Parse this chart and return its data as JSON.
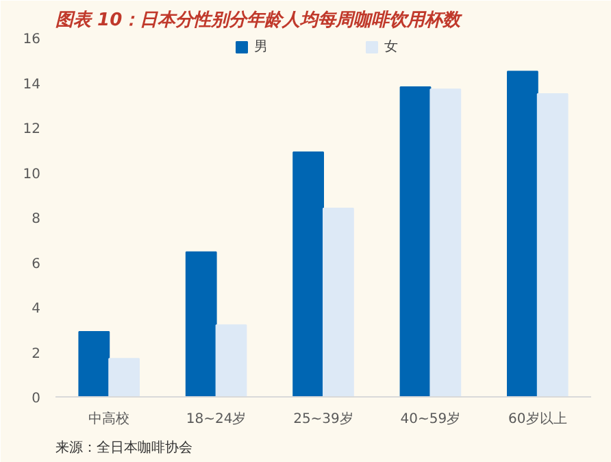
{
  "chart_data": {
    "type": "bar",
    "title": "图表 10：日本分性别分年龄人均每周咖啡饮用杯数",
    "categories": [
      "中高校",
      "18~24岁",
      "25~39岁",
      "40~59岁",
      "60岁以上"
    ],
    "series": [
      {
        "name": "男",
        "color": "#0066b3",
        "values": [
          2.9,
          6.45,
          10.9,
          13.8,
          14.5
        ]
      },
      {
        "name": "女",
        "color": "#dde9f6",
        "values": [
          1.7,
          3.2,
          8.4,
          13.7,
          13.5
        ]
      }
    ],
    "ylim": [
      0,
      16
    ],
    "yticks": [
      0,
      2,
      4,
      6,
      8,
      10,
      12,
      14,
      16
    ],
    "grid": false,
    "legend": "top",
    "annotations": [
      "来源：全日本咖啡协会"
    ]
  }
}
